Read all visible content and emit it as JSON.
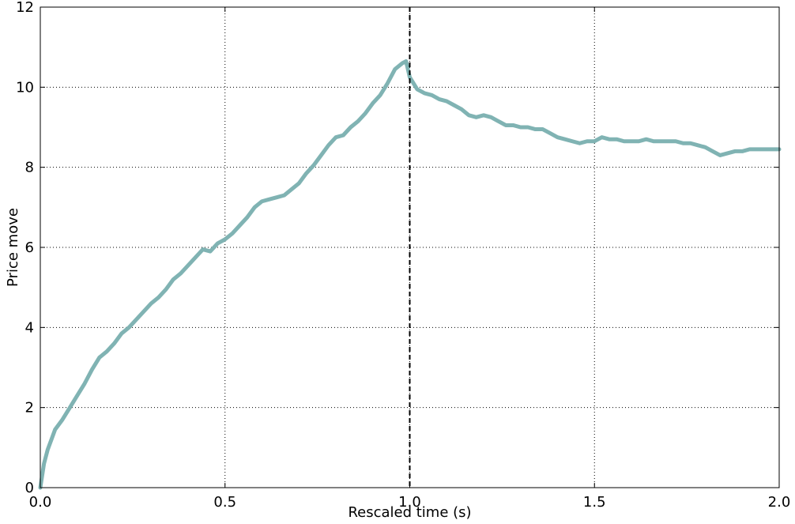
{
  "chart_data": {
    "type": "line",
    "title": "",
    "xlabel": "Rescaled time (s)",
    "ylabel": "Price move",
    "xlim": [
      0,
      2
    ],
    "ylim": [
      0,
      12
    ],
    "xticks": [
      0,
      0.5,
      1,
      1.5,
      2
    ],
    "xtick_labels": [
      "0.0",
      "0.5",
      "1.0",
      "1.5",
      "2.0"
    ],
    "yticks": [
      0,
      2,
      4,
      6,
      8,
      10,
      12
    ],
    "ytick_labels": [
      "0",
      "2",
      "4",
      "6",
      "8",
      "10",
      "12"
    ],
    "grid": true,
    "vline": {
      "x": 1.0,
      "style": "dashed",
      "color": "#000000"
    },
    "line_color": "#80b3b3",
    "series": [
      {
        "x": [
          0.0,
          0.01,
          0.02,
          0.03,
          0.04,
          0.06,
          0.08,
          0.1,
          0.12,
          0.14,
          0.16,
          0.18,
          0.2,
          0.22,
          0.24,
          0.26,
          0.28,
          0.3,
          0.32,
          0.34,
          0.36,
          0.38,
          0.4,
          0.42,
          0.44,
          0.46,
          0.48,
          0.5,
          0.52,
          0.54,
          0.56,
          0.58,
          0.6,
          0.62,
          0.64,
          0.66,
          0.68,
          0.7,
          0.72,
          0.74,
          0.76,
          0.78,
          0.8,
          0.82,
          0.84,
          0.86,
          0.88,
          0.9,
          0.92,
          0.94,
          0.96,
          0.98,
          0.99,
          1.0,
          1.02,
          1.04,
          1.06,
          1.08,
          1.1,
          1.12,
          1.14,
          1.16,
          1.18,
          1.2,
          1.22,
          1.24,
          1.26,
          1.28,
          1.3,
          1.32,
          1.34,
          1.36,
          1.38,
          1.4,
          1.42,
          1.44,
          1.46,
          1.48,
          1.5,
          1.52,
          1.54,
          1.56,
          1.58,
          1.6,
          1.62,
          1.64,
          1.66,
          1.68,
          1.7,
          1.72,
          1.74,
          1.76,
          1.78,
          1.8,
          1.82,
          1.84,
          1.86,
          1.88,
          1.9,
          1.92,
          1.94,
          1.96,
          1.98,
          2.0
        ],
        "values": [
          0.0,
          0.6,
          0.95,
          1.2,
          1.45,
          1.7,
          2.0,
          2.3,
          2.6,
          2.95,
          3.25,
          3.4,
          3.6,
          3.85,
          4.0,
          4.2,
          4.4,
          4.6,
          4.75,
          4.95,
          5.2,
          5.35,
          5.55,
          5.75,
          5.95,
          5.9,
          6.1,
          6.2,
          6.35,
          6.55,
          6.75,
          7.0,
          7.15,
          7.2,
          7.25,
          7.3,
          7.45,
          7.6,
          7.85,
          8.05,
          8.3,
          8.55,
          8.75,
          8.8,
          9.0,
          9.15,
          9.35,
          9.6,
          9.8,
          10.1,
          10.45,
          10.6,
          10.65,
          10.25,
          9.95,
          9.85,
          9.8,
          9.7,
          9.65,
          9.55,
          9.45,
          9.3,
          9.25,
          9.3,
          9.25,
          9.15,
          9.05,
          9.05,
          9.0,
          9.0,
          8.95,
          8.95,
          8.85,
          8.75,
          8.7,
          8.65,
          8.6,
          8.65,
          8.65,
          8.75,
          8.7,
          8.7,
          8.65,
          8.65,
          8.65,
          8.7,
          8.65,
          8.65,
          8.65,
          8.65,
          8.6,
          8.6,
          8.55,
          8.5,
          8.4,
          8.3,
          8.35,
          8.4,
          8.4,
          8.45,
          8.45,
          8.45,
          8.45,
          8.45
        ]
      }
    ]
  }
}
